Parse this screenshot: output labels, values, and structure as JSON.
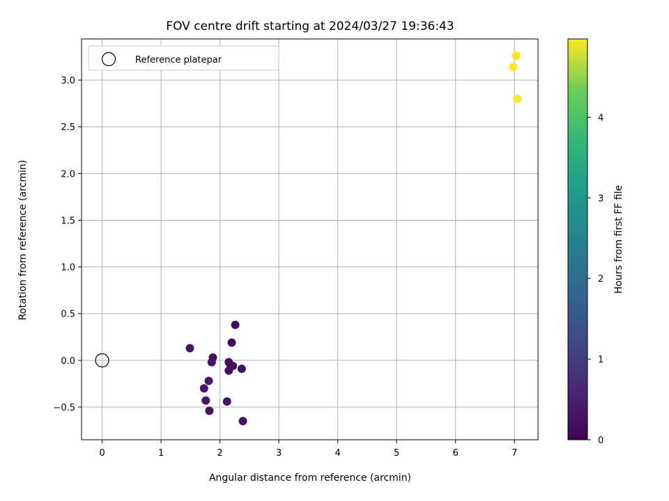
{
  "chart_data": {
    "type": "scatter",
    "title": "FOV centre drift starting at 2024/03/27 19:36:43",
    "xlabel": "Angular distance from reference (arcmin)",
    "ylabel": "Rotation from reference (arcmin)",
    "xlim": [
      -0.35,
      7.4
    ],
    "ylim": [
      -0.85,
      3.44
    ],
    "xticks": [
      0,
      1,
      2,
      3,
      4,
      5,
      6,
      7
    ],
    "yticks": [
      -0.5,
      0.0,
      0.5,
      1.0,
      1.5,
      2.0,
      2.5,
      3.0
    ],
    "ytick_labels": [
      "−0.5",
      "0.0",
      "0.5",
      "1.0",
      "1.5",
      "2.0",
      "2.5",
      "3.0"
    ],
    "grid": true,
    "legend": {
      "position": "top-left",
      "entries": [
        "Reference platepar"
      ]
    },
    "reference_point": {
      "x": 0.0,
      "y": 0.0,
      "label": "Reference platepar"
    },
    "colorbar": {
      "label": "Hours from first FF file",
      "colormap": "viridis",
      "range": [
        0,
        4.97
      ],
      "ticks": [
        0,
        1,
        2,
        3,
        4
      ]
    },
    "points": [
      {
        "x": 1.49,
        "y": 0.13,
        "c": 0.3
      },
      {
        "x": 1.88,
        "y": 0.03,
        "c": 0.25
      },
      {
        "x": 1.86,
        "y": -0.02,
        "c": 0.3
      },
      {
        "x": 1.81,
        "y": -0.22,
        "c": 0.35
      },
      {
        "x": 1.73,
        "y": -0.3,
        "c": 0.35
      },
      {
        "x": 1.76,
        "y": -0.43,
        "c": 0.35
      },
      {
        "x": 1.82,
        "y": -0.54,
        "c": 0.3
      },
      {
        "x": 2.12,
        "y": -0.44,
        "c": 0.3
      },
      {
        "x": 2.39,
        "y": -0.65,
        "c": 0.2
      },
      {
        "x": 2.15,
        "y": -0.02,
        "c": 0.2
      },
      {
        "x": 2.18,
        "y": -0.05,
        "c": 0.2
      },
      {
        "x": 2.22,
        "y": -0.06,
        "c": 0.2
      },
      {
        "x": 2.15,
        "y": -0.11,
        "c": 0.2
      },
      {
        "x": 2.37,
        "y": -0.09,
        "c": 0.2
      },
      {
        "x": 2.2,
        "y": 0.19,
        "c": 0.15
      },
      {
        "x": 2.26,
        "y": 0.38,
        "c": 0.15
      },
      {
        "x": 7.03,
        "y": 3.26,
        "c": 4.97
      },
      {
        "x": 6.98,
        "y": 3.14,
        "c": 4.97
      },
      {
        "x": 7.05,
        "y": 2.8,
        "c": 4.97
      }
    ]
  }
}
